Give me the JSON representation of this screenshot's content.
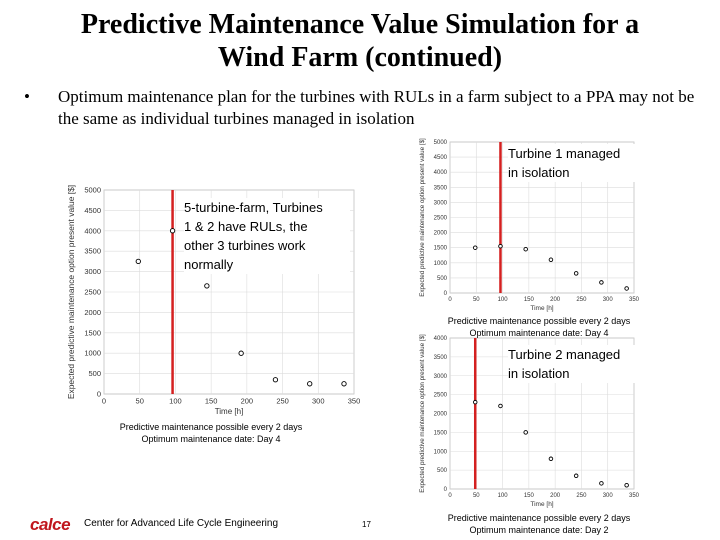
{
  "slide": {
    "title_line1": "Predictive Maintenance Value Simulation for a",
    "title_line2": "Wind Farm (continued)",
    "bullet_symbol": "•",
    "bullet_text": "Optimum maintenance plan for the turbines with RULs in a farm subject to a PPA may not be the same as individual turbines managed in isolation"
  },
  "annotations": {
    "main_line1": "5-turbine-farm, Turbines",
    "main_line2": "1 & 2 have RULs, the",
    "main_line3": "other 3 turbines work",
    "main_line4": "normally",
    "t1_line1": "Turbine 1 managed",
    "t1_line2": "in isolation",
    "t2_line1": "Turbine 2 managed",
    "t2_line2": "in isolation"
  },
  "captions": {
    "main_line1": "Predictive maintenance possible every 2 days",
    "main_line2": "Optimum maintenance date: Day 4",
    "t1_line1": "Predictive maintenance possible every 2 days",
    "t1_line2": "Optimum maintenance date: Day 4",
    "t2_line1": "Predictive maintenance possible every 2 days",
    "t2_line2": "Optimum maintenance date: Day 2"
  },
  "footer": {
    "logo": "calce",
    "org": "Center for Advanced Life Cycle Engineering",
    "page": "17"
  },
  "colors": {
    "marker_line": "#d42020",
    "grid": "#dcdcdc",
    "axis_text": "#333333"
  },
  "chart_data": [
    {
      "type": "scatter",
      "name_id": "farm",
      "xlabel": "Time [h]",
      "ylabel": "Expected predictive maintenance option present value [$]",
      "xlim": [
        0,
        350
      ],
      "ylim": [
        0,
        5000
      ],
      "xticks": [
        0,
        50,
        100,
        150,
        200,
        250,
        300,
        350
      ],
      "yticks": [
        0,
        500,
        1000,
        1500,
        2000,
        2500,
        3000,
        3500,
        4000,
        4500,
        5000
      ],
      "x": [
        48,
        96,
        144,
        192,
        240,
        288,
        336
      ],
      "y": [
        3250,
        4000,
        2650,
        1000,
        350,
        250,
        250
      ],
      "marker_x": 96
    },
    {
      "type": "scatter",
      "name_id": "t1",
      "xlabel": "Time [h]",
      "ylabel": "Expected predictive maintenance option present value [$]",
      "xlim": [
        0,
        350
      ],
      "ylim": [
        0,
        5000
      ],
      "xticks": [
        0,
        50,
        100,
        150,
        200,
        250,
        300,
        350
      ],
      "yticks": [
        0,
        500,
        1000,
        1500,
        2000,
        2500,
        3000,
        3500,
        4000,
        4500,
        5000
      ],
      "x": [
        48,
        96,
        144,
        192,
        240,
        288,
        336
      ],
      "y": [
        1500,
        1550,
        1450,
        1100,
        650,
        350,
        150
      ],
      "marker_x": 96
    },
    {
      "type": "scatter",
      "name_id": "t2",
      "xlabel": "Time [h]",
      "ylabel": "Expected predictive maintenance option present value [$]",
      "xlim": [
        0,
        350
      ],
      "ylim": [
        0,
        4000
      ],
      "xticks": [
        0,
        50,
        100,
        150,
        200,
        250,
        300,
        350
      ],
      "yticks": [
        0,
        500,
        1000,
        1500,
        2000,
        2500,
        3000,
        3500,
        4000
      ],
      "x": [
        48,
        96,
        144,
        192,
        240,
        288,
        336
      ],
      "y": [
        2300,
        2200,
        1500,
        800,
        350,
        150,
        100
      ],
      "marker_x": 48
    }
  ]
}
